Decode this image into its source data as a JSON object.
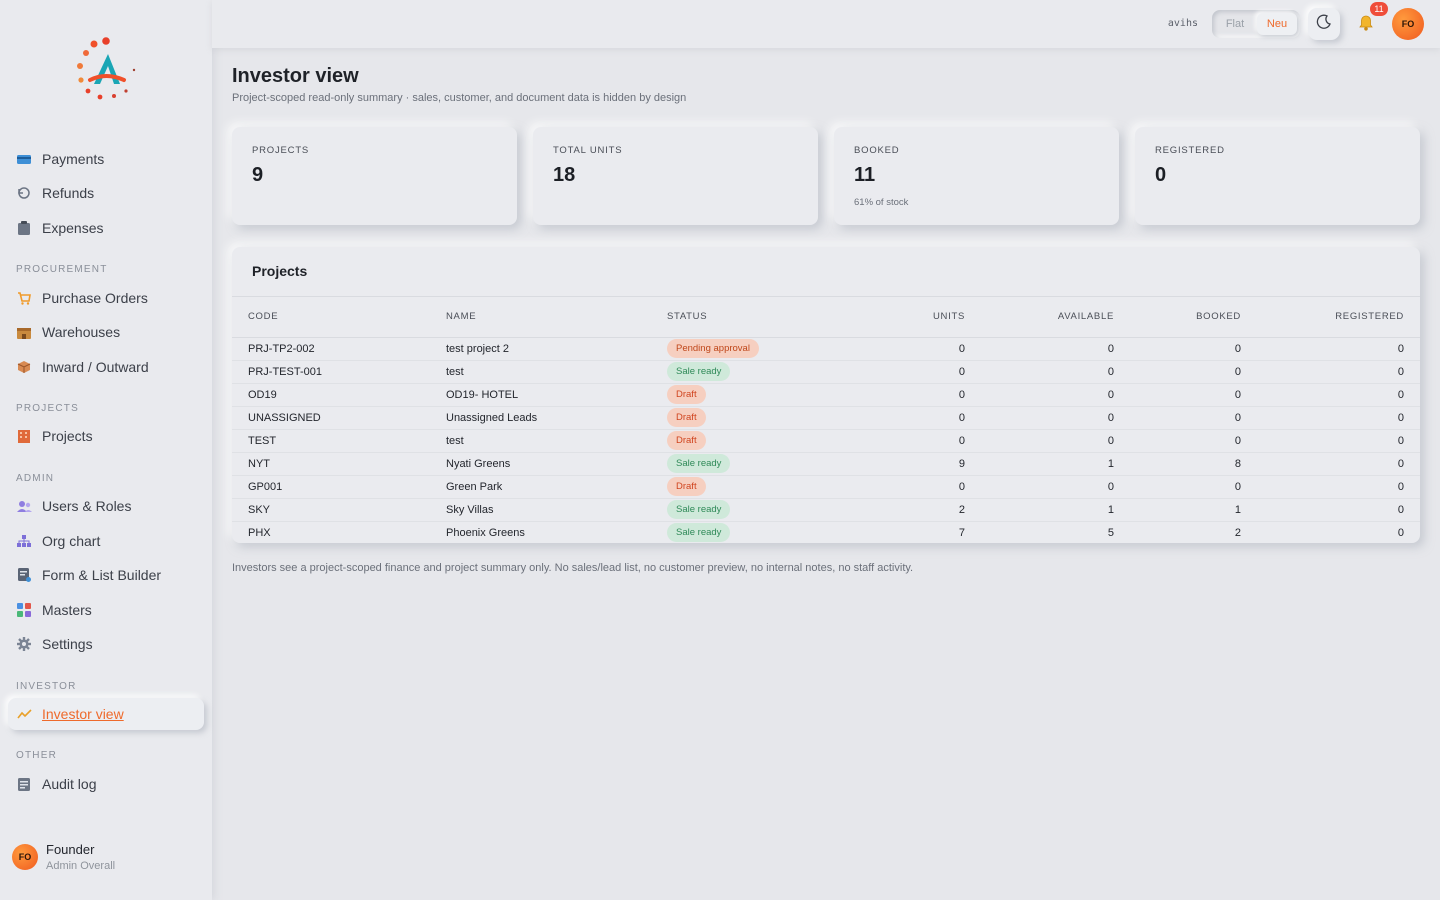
{
  "sidebar": {
    "logo_icon": "brand-logo-icon",
    "items": [
      {
        "label": "Payments",
        "icon": "card-icon"
      },
      {
        "label": "Refunds",
        "icon": "refund-icon"
      },
      {
        "label": "Expenses",
        "icon": "clipboard-icon"
      },
      {
        "label": "Purchase Orders",
        "icon": "cart-icon"
      },
      {
        "label": "Warehouses",
        "icon": "warehouse-icon"
      },
      {
        "label": "Inward / Outward",
        "icon": "box-icon"
      },
      {
        "label": "Projects",
        "icon": "building-icon"
      },
      {
        "label": "Users & Roles",
        "icon": "users-icon"
      },
      {
        "label": "Org chart",
        "icon": "org-chart-icon"
      },
      {
        "label": "Form & List Builder",
        "icon": "form-icon"
      },
      {
        "label": "Masters",
        "icon": "grid-icon"
      },
      {
        "label": "Settings",
        "icon": "gear-icon"
      },
      {
        "label": "Investor view",
        "icon": "trend-icon",
        "active": true
      },
      {
        "label": "Audit log",
        "icon": "log-icon"
      }
    ],
    "sections": [
      "PROCUREMENT",
      "PROJECTS",
      "ADMIN",
      "INVESTOR",
      "OTHER"
    ],
    "user": {
      "initials": "FO",
      "name": "Founder",
      "role": "Admin Overall"
    }
  },
  "topbar": {
    "username": "avihs",
    "mode_flat": "Flat",
    "mode_neu": "Neu",
    "selected_mode": "Neu",
    "notification_count": "11",
    "avatar_initials": "FO"
  },
  "page": {
    "title": "Investor view",
    "subtitle": "Project-scoped read-only summary · sales, customer, and document data is hidden by design"
  },
  "stats": [
    {
      "label": "PROJECTS",
      "value": "9",
      "note": ""
    },
    {
      "label": "TOTAL UNITS",
      "value": "18",
      "note": ""
    },
    {
      "label": "BOOKED",
      "value": "11",
      "note": "61% of stock"
    },
    {
      "label": "REGISTERED",
      "value": "0",
      "note": ""
    }
  ],
  "projects": {
    "title": "Projects",
    "columns": [
      "CODE",
      "NAME",
      "STATUS",
      "UNITS",
      "AVAILABLE",
      "BOOKED",
      "REGISTERED"
    ],
    "rows": [
      {
        "code": "PRJ-TP2-002",
        "name": "test project 2",
        "status": "Pending approval",
        "units": "0",
        "available": "0",
        "booked": "0",
        "registered": "0"
      },
      {
        "code": "PRJ-TEST-001",
        "name": "test",
        "status": "Sale ready",
        "units": "0",
        "available": "0",
        "booked": "0",
        "registered": "0"
      },
      {
        "code": "OD19",
        "name": "OD19- HOTEL",
        "status": "Draft",
        "units": "0",
        "available": "0",
        "booked": "0",
        "registered": "0"
      },
      {
        "code": "UNASSIGNED",
        "name": "Unassigned Leads",
        "status": "Draft",
        "units": "0",
        "available": "0",
        "booked": "0",
        "registered": "0"
      },
      {
        "code": "TEST",
        "name": "test",
        "status": "Draft",
        "units": "0",
        "available": "0",
        "booked": "0",
        "registered": "0"
      },
      {
        "code": "NYT",
        "name": "Nyati Greens",
        "status": "Sale ready",
        "units": "9",
        "available": "1",
        "booked": "8",
        "registered": "0"
      },
      {
        "code": "GP001",
        "name": "Green Park",
        "status": "Draft",
        "units": "0",
        "available": "0",
        "booked": "0",
        "registered": "0"
      },
      {
        "code": "SKY",
        "name": "Sky Villas",
        "status": "Sale ready",
        "units": "2",
        "available": "1",
        "booked": "1",
        "registered": "0"
      },
      {
        "code": "PHX",
        "name": "Phoenix Greens",
        "status": "Sale ready",
        "units": "7",
        "available": "5",
        "booked": "2",
        "registered": "0"
      }
    ]
  },
  "footnote": "Investors see a project-scoped finance and project summary only. No sales/lead list, no customer preview, no internal notes, no staff activity.",
  "colors": {
    "accent": "#ee6a2c",
    "sale_ready": "#2f8a58",
    "draft": "#d0441e",
    "badge": "#ef4d3a"
  }
}
